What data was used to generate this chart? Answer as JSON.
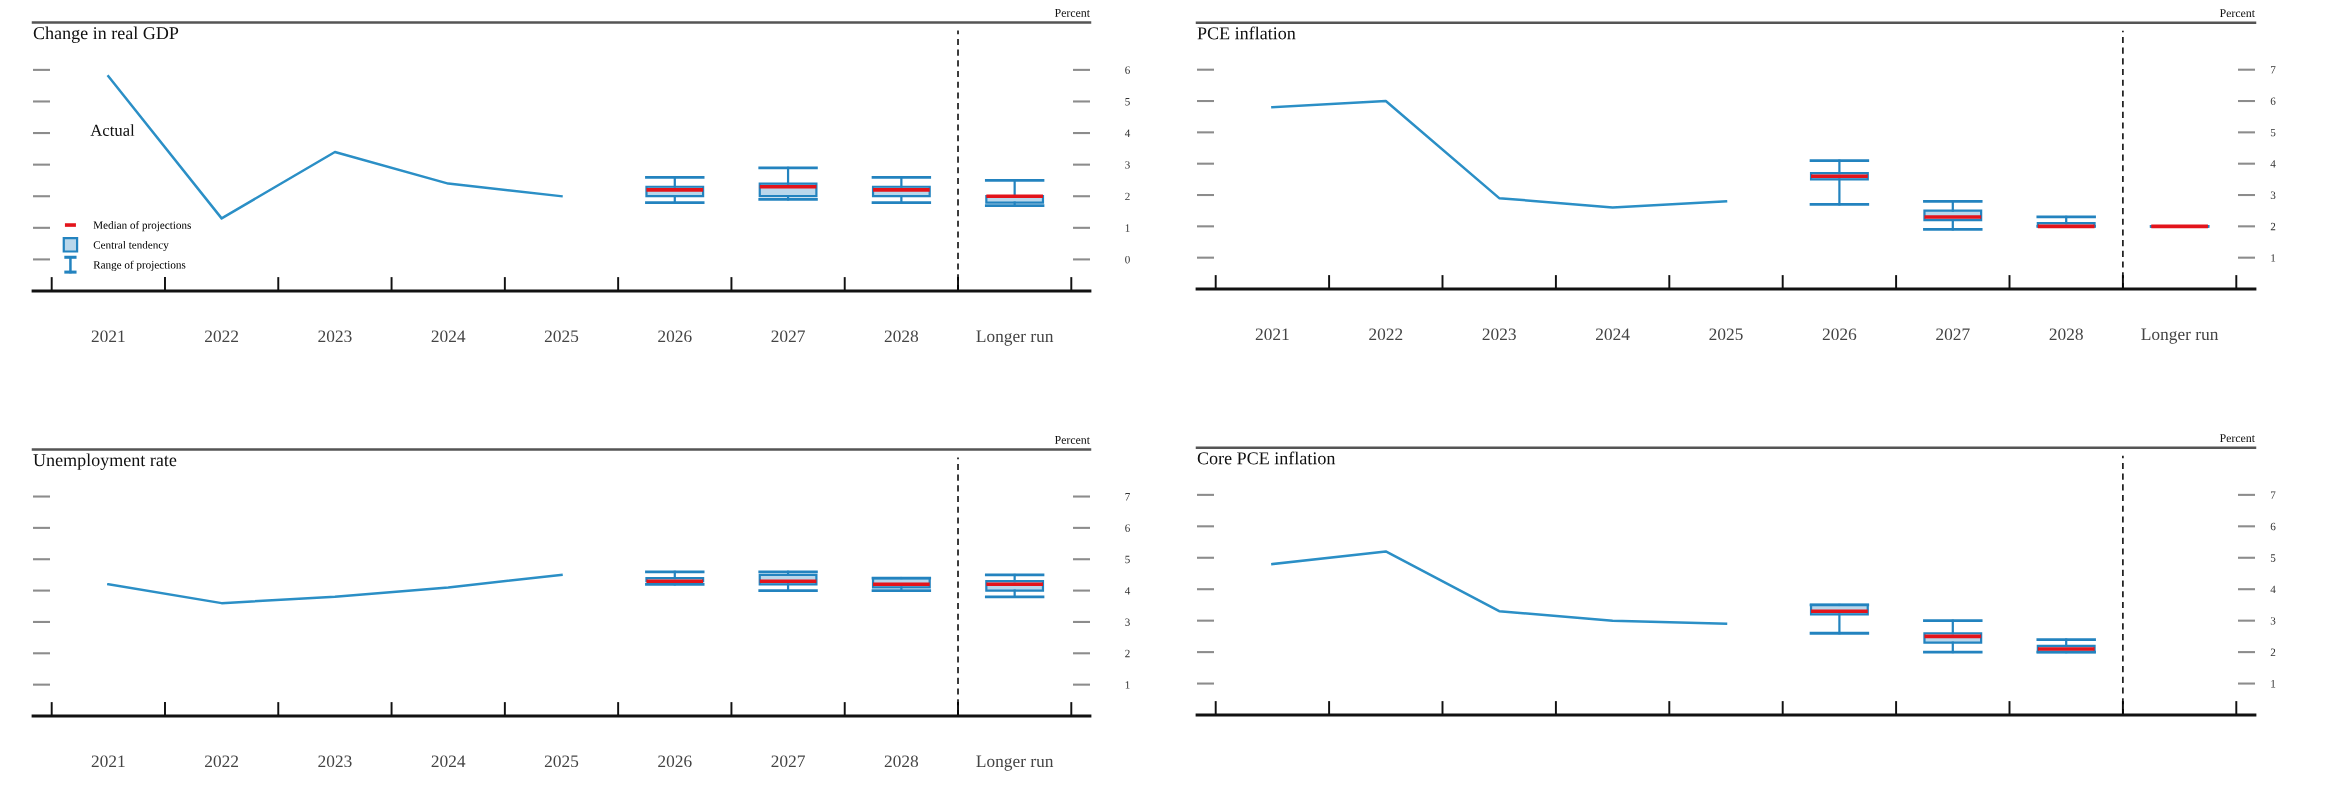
{
  "chart_data": [
    {
      "type": "box",
      "title": "Change in real GDP",
      "ylabel": "Percent",
      "categories": [
        "2021",
        "2022",
        "2023",
        "2024",
        "2025",
        "2026",
        "2027",
        "2028",
        "Longer run"
      ],
      "series": [
        {
          "name": "Actual",
          "type": "line",
          "color": "#2b8fc6",
          "values": [
            5.8,
            1.3,
            3.4,
            2.4,
            2.0,
            null,
            null,
            null,
            null
          ]
        },
        {
          "color": "#2383bf",
          "boxes": [
            null,
            null,
            null,
            null,
            null,
            {
              "low": 1.8,
              "q1": 2.0,
              "median": 2.2,
              "q3": 2.3,
              "high": 2.6
            },
            {
              "low": 1.9,
              "q1": 2.0,
              "median": 2.3,
              "q3": 2.4,
              "high": 2.9
            },
            {
              "low": 1.8,
              "q1": 2.0,
              "median": 2.2,
              "q3": 2.3,
              "high": 2.6
            },
            {
              "low": 1.7,
              "q1": 1.8,
              "median": 2.0,
              "q3": 2.0,
              "high": 2.5
            }
          ]
        }
      ],
      "ylim": [
        -1,
        7.5
      ],
      "yticks": [
        0,
        1,
        2,
        3,
        4,
        5,
        6
      ],
      "annotations": [
        "Median of projections",
        "Central tendency",
        "Range of projections"
      ]
    },
    {
      "type": "box",
      "title": "PCE inflation",
      "ylabel": "Percent",
      "categories": [
        "2021",
        "2022",
        "2023",
        "2024",
        "2025",
        "2026",
        "2027",
        "2028",
        "Longer run"
      ],
      "series": [
        {
          "type": "line",
          "color": "#2b8fc6",
          "values": [
            5.8,
            6.0,
            2.9,
            2.6,
            2.8,
            null,
            null,
            null,
            null
          ]
        },
        {
          "color": "#2383bf",
          "boxes": [
            null,
            null,
            null,
            null,
            null,
            {
              "low": 2.7,
              "q1": 3.5,
              "median": 3.6,
              "q3": 3.7,
              "high": 4.1
            },
            {
              "low": 1.9,
              "q1": 2.2,
              "median": 2.3,
              "q3": 2.5,
              "high": 2.8
            },
            {
              "low": 2.0,
              "q1": 2.0,
              "median": 2.0,
              "q3": 2.1,
              "high": 2.3
            },
            {
              "low": 2.0,
              "q1": 2.0,
              "median": 2.0,
              "q3": 2.0,
              "high": 2.0
            }
          ]
        }
      ],
      "ylim": [
        0,
        8.5
      ],
      "yticks": [
        1,
        2,
        3,
        4,
        5,
        6,
        7
      ]
    },
    {
      "type": "box",
      "title": "Unemployment rate",
      "ylabel": "Percent",
      "categories": [
        "2021",
        "2022",
        "2023",
        "2024",
        "2025",
        "2026",
        "2027",
        "2028",
        "Longer run"
      ],
      "series": [
        {
          "type": "line",
          "color": "#2b8fc6",
          "values": [
            4.2,
            3.6,
            3.8,
            4.1,
            4.5,
            null,
            null,
            null,
            null
          ]
        },
        {
          "color": "#2383bf",
          "boxes": [
            null,
            null,
            null,
            null,
            null,
            {
              "low": 4.2,
              "q1": 4.3,
              "median": 4.3,
              "q3": 4.4,
              "high": 4.6
            },
            {
              "low": 4.0,
              "q1": 4.2,
              "median": 4.3,
              "q3": 4.5,
              "high": 4.6
            },
            {
              "low": 4.0,
              "q1": 4.1,
              "median": 4.2,
              "q3": 4.4,
              "high": 4.4
            },
            {
              "low": 3.8,
              "q1": 4.0,
              "median": 4.2,
              "q3": 4.3,
              "high": 4.5
            }
          ]
        }
      ],
      "ylim": [
        0,
        8.5
      ],
      "yticks": [
        1,
        2,
        3,
        4,
        5,
        6,
        7
      ]
    },
    {
      "type": "box",
      "title": "Core PCE inflation",
      "ylabel": "Percent",
      "categories": [
        null,
        null,
        null,
        null,
        null,
        null,
        null,
        null,
        null
      ],
      "series": [
        {
          "type": "line",
          "color": "#2b8fc6",
          "values": [
            4.8,
            5.2,
            3.3,
            3.0,
            2.9,
            null,
            null,
            null,
            null
          ]
        },
        {
          "color": "#2383bf",
          "boxes": [
            null,
            null,
            null,
            null,
            null,
            {
              "low": 2.6,
              "q1": 3.2,
              "median": 3.3,
              "q3": 3.5,
              "high": 3.5
            },
            {
              "low": 2.0,
              "q1": 2.3,
              "median": 2.5,
              "q3": 2.6,
              "high": 3.0
            },
            {
              "low": 2.0,
              "q1": 2.0,
              "median": 2.1,
              "q3": 2.2,
              "high": 2.4
            },
            null
          ]
        }
      ],
      "ylim": [
        0,
        8.5
      ],
      "yticks": [
        1,
        2,
        3,
        4,
        5,
        6,
        7
      ],
      "tick_labels": "y"
    }
  ]
}
